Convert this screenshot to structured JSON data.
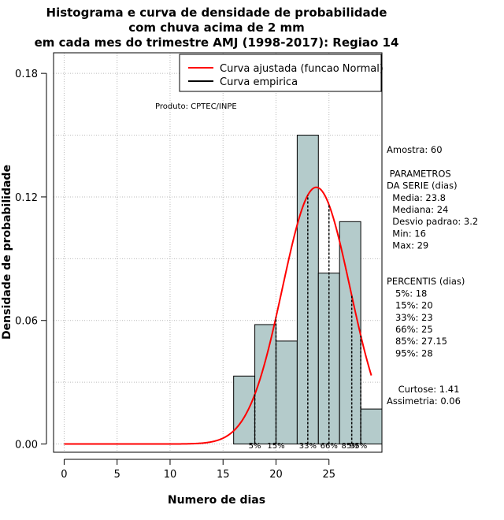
{
  "chart_data": {
    "type": "bar",
    "title_lines": [
      "Histograma e curva de densidade de probabilidade",
      "com chuva acima de 2 mm",
      "em cada mes do trimestre AMJ (1998-2017): Regiao 14"
    ],
    "xlabel": "Numero de dias",
    "ylabel": "Densidade de probabilidade",
    "xlim": [
      -1,
      30
    ],
    "ylim": [
      -0.004,
      0.19
    ],
    "x_ticks": [
      0,
      5,
      10,
      15,
      20,
      25
    ],
    "y_ticks": [
      0.0,
      0.06,
      0.12,
      0.18
    ],
    "y_tick_labels": [
      "0.00",
      "0.06",
      "0.12",
      "0.18"
    ],
    "bins": [
      {
        "from": 16,
        "to": 18,
        "density": 0.033
      },
      {
        "from": 18,
        "to": 20,
        "density": 0.058
      },
      {
        "from": 20,
        "to": 22,
        "density": 0.05
      },
      {
        "from": 22,
        "to": 24,
        "density": 0.15
      },
      {
        "from": 24,
        "to": 26,
        "density": 0.083
      },
      {
        "from": 26,
        "to": 28,
        "density": 0.108
      },
      {
        "from": 28,
        "to": 30,
        "density": 0.017
      }
    ],
    "normal_fit": {
      "mean": 23.8,
      "sd": 3.2,
      "x_from": 0,
      "x_to": 29
    },
    "percentile_markers": [
      {
        "label": "5%",
        "x": 18
      },
      {
        "label": "15%",
        "x": 20
      },
      {
        "label": "33%",
        "x": 23
      },
      {
        "label": "66%",
        "x": 25
      },
      {
        "label": "85%",
        "x": 27.15
      },
      {
        "label": "95%",
        "x": 28
      }
    ],
    "legend": [
      {
        "label": "Curva ajustada (funcao Normal)",
        "color": "#ff0000"
      },
      {
        "label": "Curva empirica",
        "color": "#000000"
      }
    ],
    "product_label": "Produto: CPTEC/INPE",
    "stats_block": [
      "Amostra: 60",
      "",
      " PARAMETROS",
      "DA SERIE (dias)",
      "  Media: 23.8",
      "  Mediana: 24",
      "  Desvio padrao: 3.2",
      "  Min: 16",
      "  Max: 29",
      "",
      "",
      "PERCENTIS (dias)",
      "   5%: 18",
      "   15%: 20",
      "   33%: 23",
      "   66%: 25",
      "   85%: 27.15",
      "   95%: 28",
      "",
      "",
      "    Curtose: 1.41",
      "Assimetria: 0.06"
    ],
    "colors": {
      "bar_fill": "#b4cbcb",
      "fit": "#ff0000",
      "grid": "#bbbbbb"
    }
  }
}
